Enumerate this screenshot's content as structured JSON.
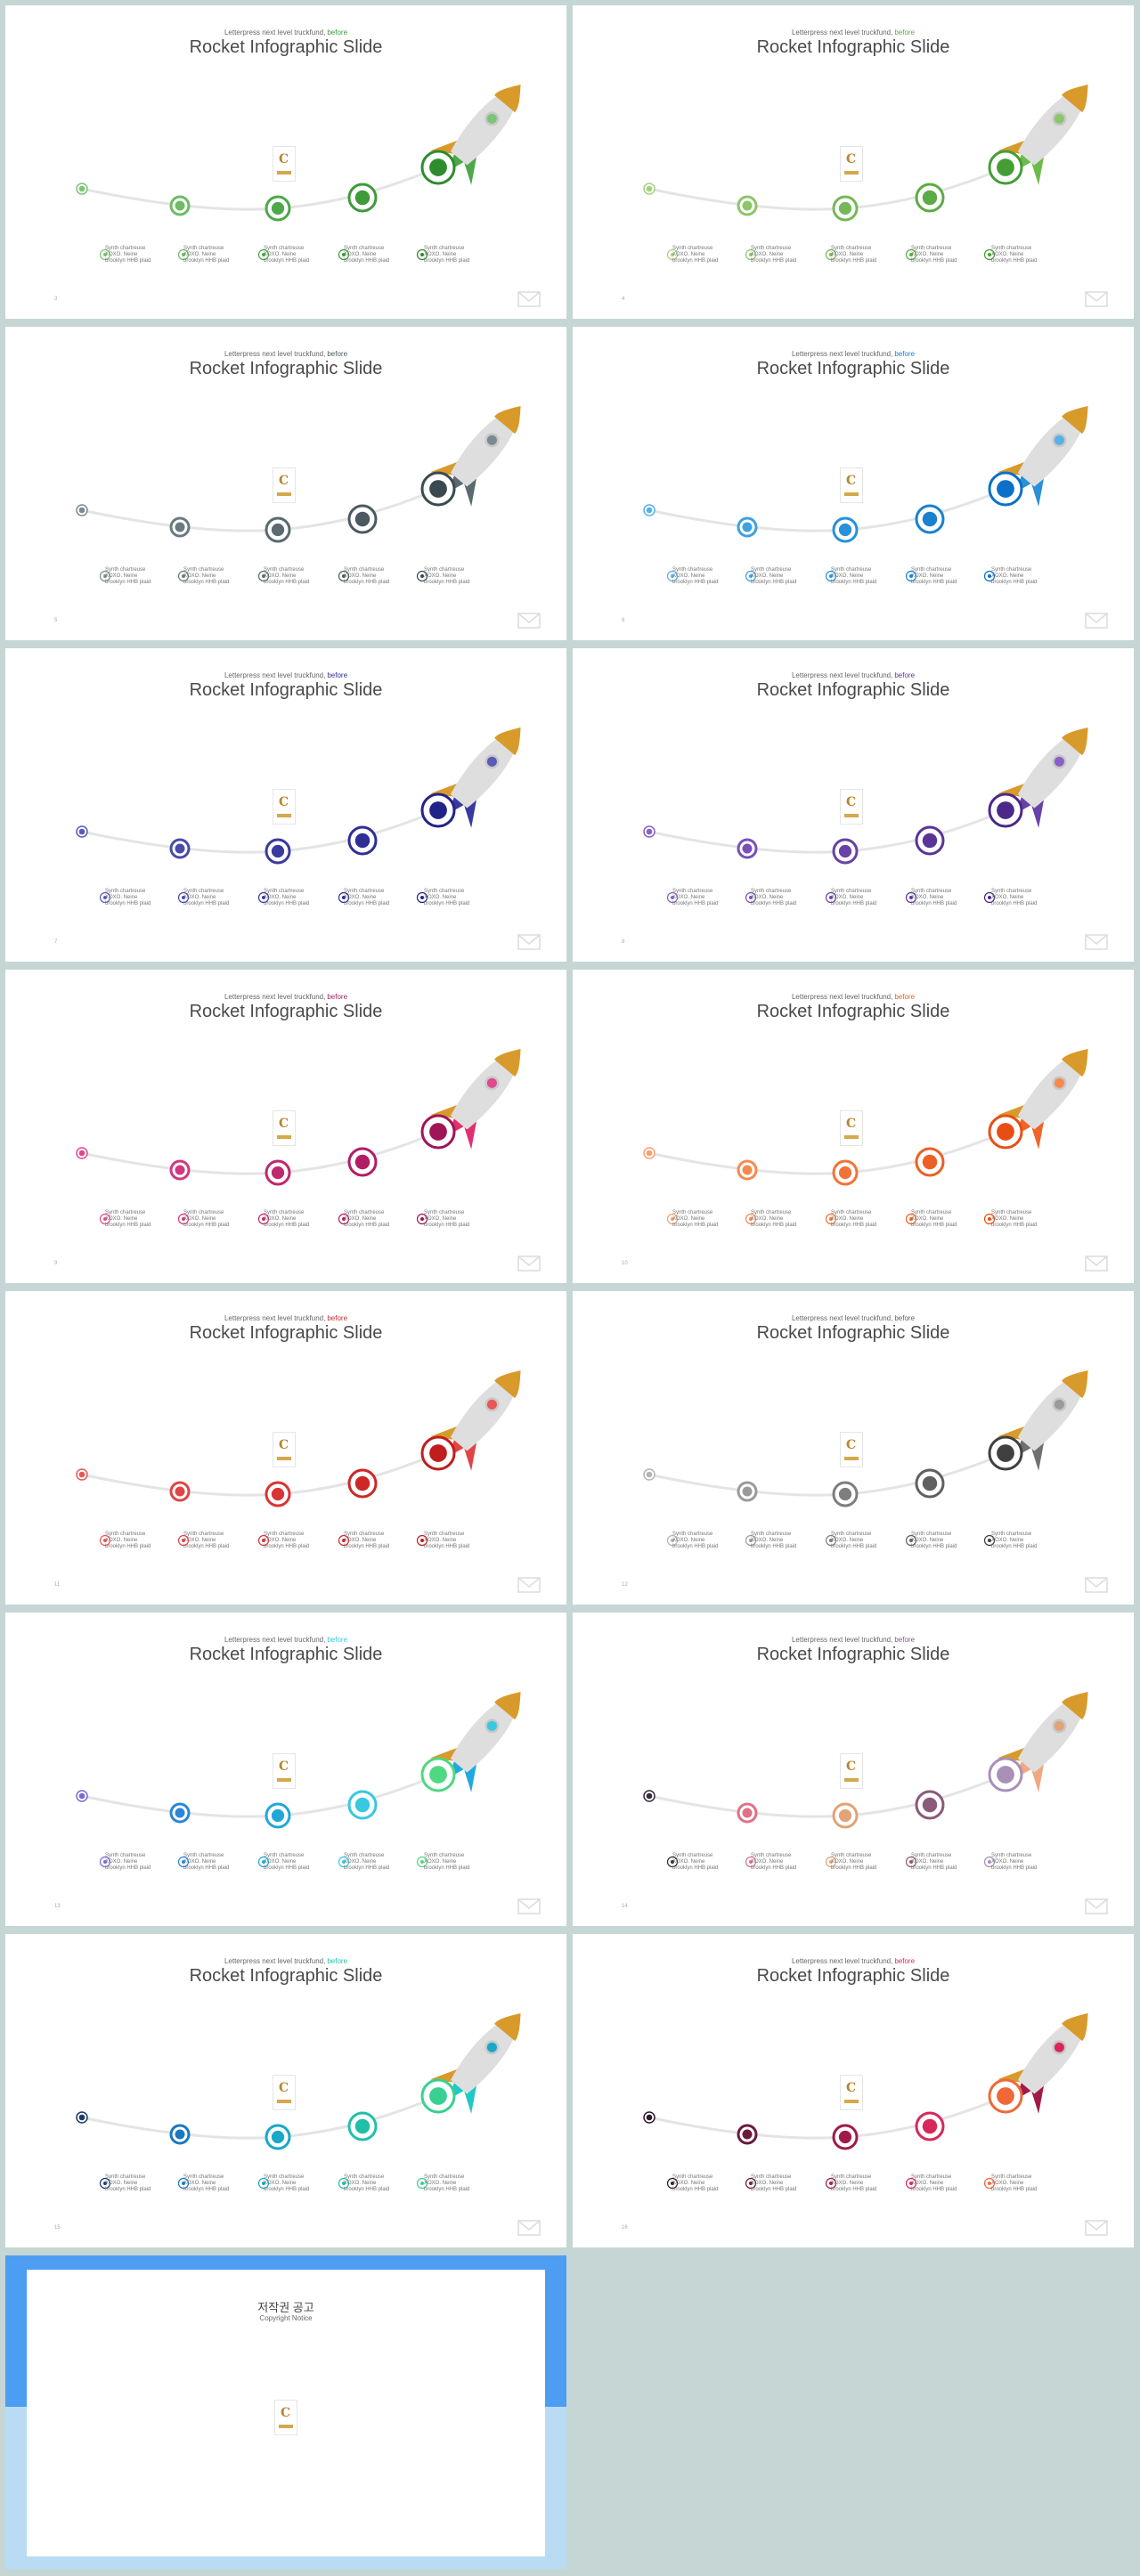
{
  "slide_common": {
    "eyebrow": "Letterpress next level truckfund,",
    "eyebrow_accent": "before",
    "title": "Rocket Infographic Slide",
    "label_text": "Synth chartreuse XOXO. Neine brooklyn HHB plaid"
  },
  "slides": [
    {
      "page": "3",
      "c": [
        "#7cc576",
        "#6cbc66",
        "#4ea84a",
        "#3f9a3a",
        "#2e8b2e"
      ],
      "fin": "#4ea84a",
      "window": "#7cc576"
    },
    {
      "page": "4",
      "c": [
        "#a4d27c",
        "#8cc56a",
        "#74b858",
        "#5cab46",
        "#449e34"
      ],
      "fin": "#6cbb4a",
      "window": "#8cc56a"
    },
    {
      "page": "5",
      "c": [
        "#7a8a90",
        "#6a7a80",
        "#5a6a70",
        "#4a5a60",
        "#3a4a50"
      ],
      "fin": "#5a6a70",
      "window": "#7a8a90"
    },
    {
      "page": "6",
      "c": [
        "#58b0e8",
        "#3ea0e0",
        "#2a90d8",
        "#1a80d0",
        "#0a70c8"
      ],
      "fin": "#2a90d8",
      "window": "#58b0e8"
    },
    {
      "page": "7",
      "c": [
        "#5a5ab8",
        "#4a4aa8",
        "#3a3a9e",
        "#2e2e94",
        "#22228a"
      ],
      "fin": "#3a3a9e",
      "window": "#5a5ab8"
    },
    {
      "page": "8",
      "c": [
        "#8860c8",
        "#7850b8",
        "#6842a8",
        "#5a3498",
        "#4c2888"
      ],
      "fin": "#6842a8",
      "window": "#8860c8"
    },
    {
      "page": "9",
      "c": [
        "#e04890",
        "#d03880",
        "#c02870",
        "#b01e64",
        "#a01458"
      ],
      "fin": "#e03070",
      "window": "#e04890"
    },
    {
      "page": "10",
      "c": [
        "#f8a070",
        "#f48a50",
        "#f07438",
        "#ec6024",
        "#e84e14"
      ],
      "fin": "#f06428",
      "window": "#f48a50"
    },
    {
      "page": "11",
      "c": [
        "#e85858",
        "#e04444",
        "#d83434",
        "#cc2828",
        "#c01e1e"
      ],
      "fin": "#e04444",
      "window": "#e85858"
    },
    {
      "page": "12",
      "c": [
        "#b4b4b4",
        "#9a9a9a",
        "#7e7e7e",
        "#606060",
        "#404040"
      ],
      "fin": "#707070",
      "window": "#9a9a9a"
    },
    {
      "page": "13",
      "c": [
        "#7a68d8",
        "#2a86d8",
        "#22a8d8",
        "#38c8e0",
        "#50d880"
      ],
      "fin": "#22a8e0",
      "window": "#38c8e0"
    },
    {
      "page": "14",
      "c": [
        "#3a2a3a",
        "#e07088",
        "#e0a478",
        "#8a5a7a",
        "#a890b8"
      ],
      "fin": "#f0a880",
      "window": "#e0a478"
    },
    {
      "page": "15",
      "c": [
        "#1a3a6a",
        "#1a78c0",
        "#18a8c8",
        "#20c0a8",
        "#38d090"
      ],
      "fin": "#20c8c8",
      "window": "#18a8c8"
    },
    {
      "page": "16",
      "c": [
        "#2a1a2a",
        "#6a1a3a",
        "#a01a4a",
        "#d8285a",
        "#f06838"
      ],
      "fin": "#a01a4a",
      "window": "#d8285a"
    }
  ],
  "notice": {
    "title": "저작권 공고",
    "subtitle": "Copyright Notice"
  }
}
